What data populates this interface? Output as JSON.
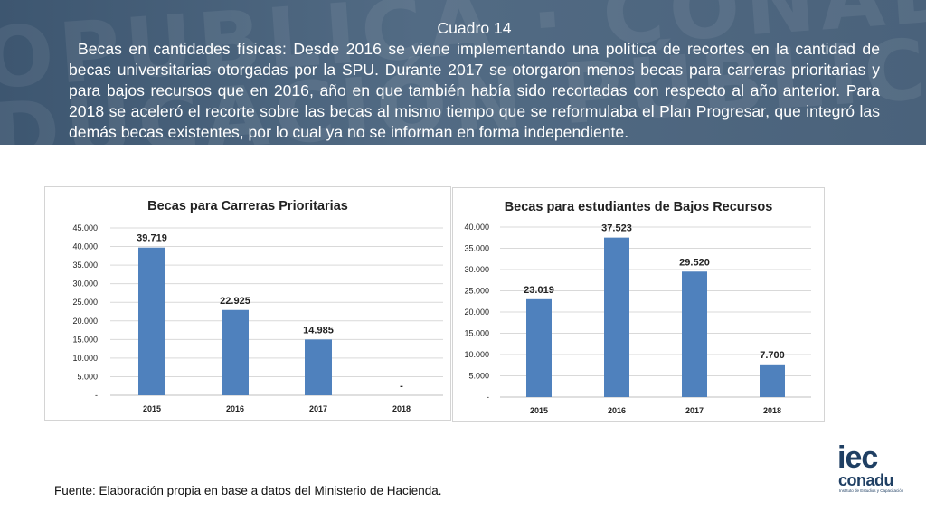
{
  "banner": {
    "heading": "Cuadro 14",
    "paragraph": "Becas en cantidades físicas:  Desde 2016 se viene implementando una política de recortes en la cantidad de becas universitarias otorgadas por la SPU.  Durante 2017 se otorgaron menos becas para carreras prioritarias y para bajos recursos que en 2016, año en que también había sido recortadas con respecto al año anterior. Para 2018 se aceleró el recorte sobre las becas al mismo tiempo que se reformulaba el  Plan Progresar, que integró las demás becas existentes, por lo cual ya no se informan en forma independiente.",
    "background_color": "#46607a"
  },
  "source_note": "Fuente: Elaboración propia en base a datos del Ministerio de Hacienda.",
  "logo": {
    "line1": "iec",
    "line2": "conadu",
    "line3": "Instituto de Estudios y Capacitación"
  },
  "chart_data": [
    {
      "type": "bar",
      "title": "Becas para Carreras Prioritarias",
      "categories": [
        "2015",
        "2016",
        "2017",
        "2018"
      ],
      "values": [
        39719,
        22925,
        14985,
        0
      ],
      "data_labels": [
        "39.719",
        "22.925",
        "14.985",
        "-"
      ],
      "ylim": [
        0,
        45000
      ],
      "yticks": [
        0,
        5000,
        10000,
        15000,
        20000,
        25000,
        30000,
        35000,
        40000,
        45000
      ],
      "ytick_labels": [
        "-",
        "5.000",
        "10.000",
        "15.000",
        "20.000",
        "25.000",
        "30.000",
        "35.000",
        "40.000",
        "45.000"
      ],
      "grid": true,
      "bar_color": "#4f81bd"
    },
    {
      "type": "bar",
      "title": "Becas para estudiantes de Bajos Recursos",
      "categories": [
        "2015",
        "2016",
        "2017",
        "2018"
      ],
      "values": [
        23019,
        37523,
        29520,
        7700
      ],
      "data_labels": [
        "23.019",
        "37.523",
        "29.520",
        "7.700"
      ],
      "ylim": [
        0,
        40000
      ],
      "yticks": [
        0,
        5000,
        10000,
        15000,
        20000,
        25000,
        30000,
        35000,
        40000
      ],
      "ytick_labels": [
        "-",
        "5.000",
        "10.000",
        "15.000",
        "20.000",
        "25.000",
        "30.000",
        "35.000",
        "40.000"
      ],
      "grid": true,
      "bar_color": "#4f81bd"
    }
  ]
}
